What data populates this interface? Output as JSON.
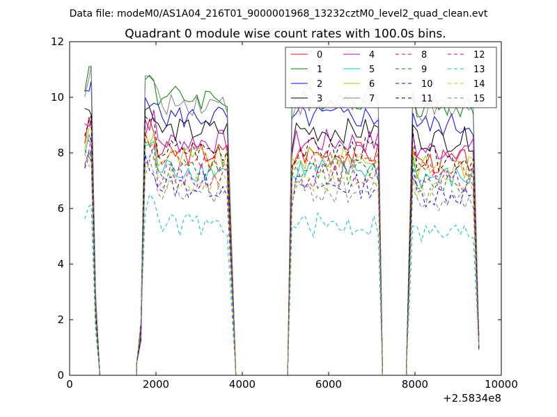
{
  "suptitle": "Data file: modeM0/AS1A04_216T01_9000001968_13232cztM0_level2_quad_clean.evt",
  "chart_data": {
    "type": "line",
    "title": "Quadrant 0 module wise count rates with 100.0s bins.",
    "xlabel": "",
    "ylabel": "",
    "x_offset_label": "+2.5834e8",
    "xlim": [
      0,
      10000
    ],
    "ylim": [
      0,
      12
    ],
    "xticks": [
      0,
      2000,
      4000,
      6000,
      8000,
      10000
    ],
    "yticks": [
      0,
      2,
      4,
      6,
      8,
      10,
      12
    ],
    "grid": false,
    "legend_placement": "top-right",
    "legend_columns": 4,
    "segments": [
      {
        "on_start": 350,
        "plateau_start": 450,
        "fall_start": 600,
        "zero_start": 700
      },
      {
        "rise_start": 1550,
        "on_start": 1750,
        "fall_start": 3700,
        "zero_start": 3850
      },
      {
        "rise_start": 5050,
        "on_start": 5150,
        "fall_start": 7150,
        "zero_start": 7250
      },
      {
        "rise_start": 7800,
        "on_start": 7950,
        "fall_start": 9400,
        "zero_start": 9480
      }
    ],
    "zero_gap_points": [
      700,
      1000,
      1300,
      1550,
      3850,
      4200,
      4600,
      5050,
      7250,
      7500,
      7800
    ],
    "series": [
      {
        "name": "0",
        "color": "#ff0000",
        "style": "solid",
        "level": 8.0
      },
      {
        "name": "1",
        "color": "#008000",
        "style": "solid",
        "level": 10.0
      },
      {
        "name": "2",
        "color": "#0000ff",
        "style": "solid",
        "level": 9.3
      },
      {
        "name": "3",
        "color": "#000000",
        "style": "solid",
        "level": 8.8
      },
      {
        "name": "4",
        "color": "#bf00bf",
        "style": "solid",
        "level": 8.4
      },
      {
        "name": "5",
        "color": "#00bfbf",
        "style": "solid",
        "level": 7.4
      },
      {
        "name": "6",
        "color": "#bfbf00",
        "style": "solid",
        "level": 7.8
      },
      {
        "name": "7",
        "color": "#808080",
        "style": "solid",
        "level": 9.8
      },
      {
        "name": "8",
        "color": "#ff0000",
        "style": "dashed",
        "level": 7.7
      },
      {
        "name": "9",
        "color": "#008000",
        "style": "dashed",
        "level": 7.3
      },
      {
        "name": "10",
        "color": "#0000ff",
        "style": "dashed",
        "level": 6.8
      },
      {
        "name": "11",
        "color": "#000000",
        "style": "dashed",
        "level": 8.1
      },
      {
        "name": "12",
        "color": "#bf00bf",
        "style": "dashed",
        "level": 7.2
      },
      {
        "name": "13",
        "color": "#00bfbf",
        "style": "dashed",
        "level": 5.4
      },
      {
        "name": "14",
        "color": "#bfbf00",
        "style": "dashed",
        "level": 7.0
      },
      {
        "name": "15",
        "color": "#808080",
        "style": "dashed",
        "level": 6.6
      }
    ]
  }
}
